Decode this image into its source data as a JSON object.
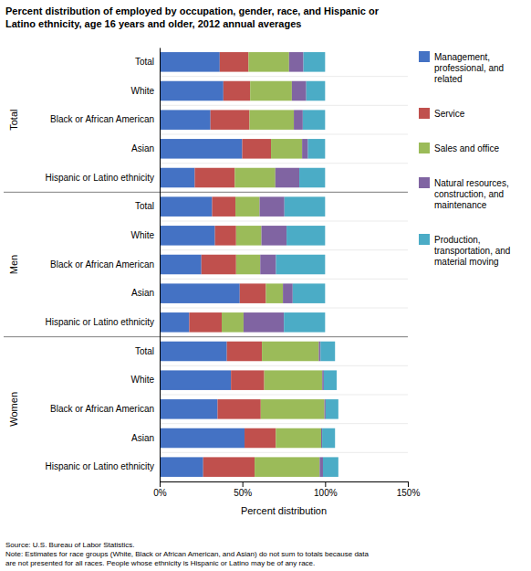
{
  "chart_data": {
    "type": "bar",
    "orientation": "horizontal",
    "stacked": true,
    "title": "Percent distribution of employed by occupation, gender, race, and Hispanic or\nLatino ethnicity, age 16 years and older, 2012 annual averages",
    "categories": [
      "Total",
      "White",
      "Black or African American",
      "Asian",
      "Hispanic or Latino ethnicity",
      "Total",
      "White",
      "Black or African American",
      "Asian",
      "Hispanic or Latino ethnicity",
      "Total",
      "White",
      "Black or African American",
      "Asian",
      "Hispanic or Latino ethnicity"
    ],
    "annotations": [
      "Total",
      "Men",
      "Women"
    ],
    "series": [
      {
        "name": "Management,\nprofessional, and\nrelated",
        "color": "#4472C4",
        "values": [
          36.3,
          38.5,
          30.7,
          49.9,
          21.2,
          31.7,
          33.4,
          25.2,
          48.4,
          17.9,
          40.6,
          43.1,
          35.0,
          51.3,
          26.3
        ]
      },
      {
        "name": "Service",
        "color": "#C0504D",
        "values": [
          17.4,
          16.2,
          23.6,
          17.4,
          24.2,
          14.1,
          12.8,
          21.0,
          15.8,
          19.6,
          21.2,
          20.1,
          26.1,
          18.9,
          31.1
        ]
      },
      {
        "name": "Sales and office",
        "color": "#9BBB59",
        "values": [
          24.5,
          25.2,
          26.8,
          18.8,
          24.5,
          14.6,
          15.3,
          14.6,
          10.3,
          13.2,
          34.4,
          35.1,
          38.5,
          27.4,
          39.3
        ]
      },
      {
        "name": "Natural resources,\nconstruction, and\nmaintenance",
        "color": "#8064A2",
        "values": [
          8.7,
          8.7,
          5.4,
          3.5,
          14.5,
          15.0,
          15.2,
          9.5,
          5.9,
          24.4,
          1.0,
          0.9,
          0.7,
          0.6,
          2.0
        ]
      },
      {
        "name": "Production,\ntransportation, and\nmaterial moving",
        "color": "#4BACC6",
        "values": [
          13.1,
          11.4,
          13.5,
          10.4,
          15.6,
          24.6,
          23.3,
          29.7,
          19.6,
          24.9,
          8.8,
          7.8,
          7.7,
          7.8,
          9.3
        ]
      }
    ],
    "xlabel": "Percent distribution",
    "xlim": [
      0,
      150
    ],
    "xticks": [
      {
        "value": 0,
        "label": "0%"
      },
      {
        "value": 50,
        "label": "50%"
      },
      {
        "value": 100,
        "label": "100%"
      },
      {
        "value": 150,
        "label": "150%"
      }
    ],
    "source": "Source: U.S. Bureau of Labor Statistics.\nNote: Estimates for race groups (White, Black or African American, and Asian) do not sum to totals because data\nare not presented for all races.  People whose ethnicity is Hispanic or Latino may be of any race."
  }
}
